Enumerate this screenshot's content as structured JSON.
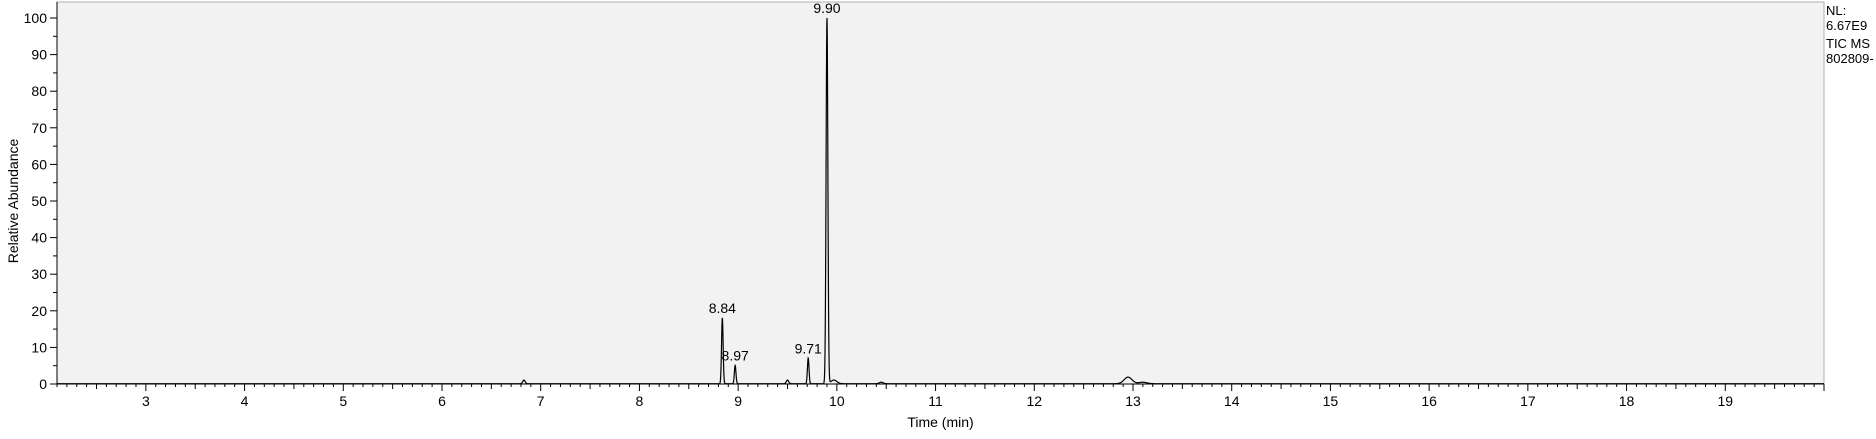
{
  "chart_data": {
    "type": "line",
    "title": "",
    "xlabel": "Time (min)",
    "ylabel": "Relative Abundance",
    "xlim": [
      2.1,
      20.0
    ],
    "ylim": [
      0,
      100
    ],
    "x_ticks": [
      "3",
      "4",
      "5",
      "6",
      "7",
      "8",
      "9",
      "10",
      "11",
      "12",
      "13",
      "14",
      "15",
      "16",
      "17",
      "18",
      "19"
    ],
    "y_ticks": [
      "0",
      "10",
      "20",
      "30",
      "40",
      "50",
      "60",
      "70",
      "80",
      "90",
      "100"
    ],
    "grid": false,
    "colors": {
      "plot_background": "#f2f2f2",
      "trace": "#000000",
      "axis": "#000000"
    },
    "peaks": [
      {
        "x": 6.83,
        "y": 1.0,
        "width": 0.012
      },
      {
        "x": 8.84,
        "y": 18,
        "width": 0.008,
        "label": "8.84"
      },
      {
        "x": 8.97,
        "y": 5,
        "width": 0.008,
        "label": "8.97"
      },
      {
        "x": 9.5,
        "y": 1.0,
        "width": 0.012
      },
      {
        "x": 9.71,
        "y": 7,
        "width": 0.008,
        "label": "9.71"
      },
      {
        "x": 9.9,
        "y": 100,
        "width": 0.009,
        "label": "9.90"
      },
      {
        "x": 9.97,
        "y": 1.0,
        "width": 0.03
      },
      {
        "x": 10.45,
        "y": 0.4,
        "width": 0.02
      },
      {
        "x": 12.95,
        "y": 1.8,
        "width": 0.04
      },
      {
        "x": 13.1,
        "y": 0.4,
        "width": 0.04
      }
    ],
    "header": {
      "nl_label": "NL:",
      "nl_value": "6.67E9",
      "scan_filter": "TIC  MS",
      "file_name": "802809-"
    }
  }
}
